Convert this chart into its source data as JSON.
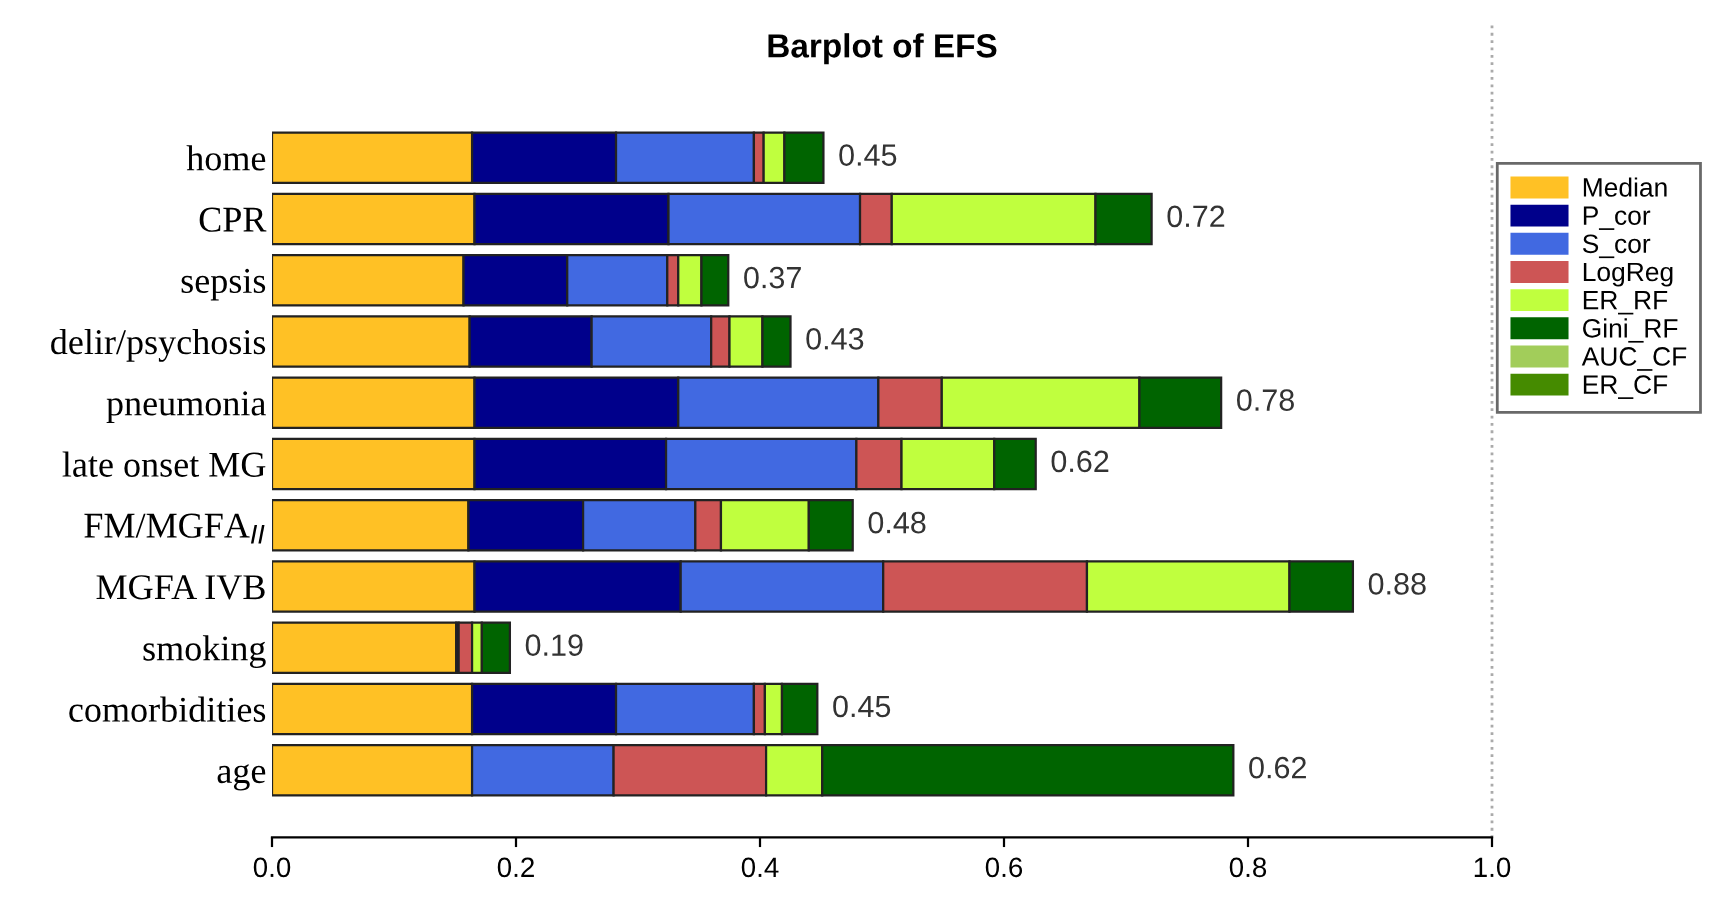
{
  "chart_data": {
    "type": "bar",
    "orientation": "horizontal",
    "stacked": true,
    "title": "Barplot of EFS",
    "categories": [
      "home",
      "CPR",
      "sepsis",
      "delir/psychosis",
      "pneumonia",
      "late onset MG",
      "FM/MGFA$_{II}$",
      "MGFA IVB",
      "smoking",
      "comorbidities",
      "age"
    ],
    "series": [
      {
        "name": "Median",
        "color": "#ffc125",
        "values": [
          0.164,
          0.166,
          0.157,
          0.162,
          0.166,
          0.166,
          0.161,
          0.166,
          0.151,
          0.164,
          0.164
        ]
      },
      {
        "name": "P_cor",
        "color": "#00008b",
        "values": [
          0.118,
          0.159,
          0.085,
          0.1,
          0.167,
          0.157,
          0.094,
          0.169,
          0.002,
          0.118,
          0
        ]
      },
      {
        "name": "S_cor",
        "color": "#4169e1",
        "values": [
          0.113,
          0.157,
          0.082,
          0.098,
          0.164,
          0.156,
          0.092,
          0.166,
          0,
          0.113,
          0.116
        ]
      },
      {
        "name": "LogReg",
        "color": "#cd5555",
        "values": [
          0.008,
          0.026,
          0.009,
          0.015,
          0.052,
          0.037,
          0.021,
          0.167,
          0.011,
          0.009,
          0.125
        ]
      },
      {
        "name": "ER_RF",
        "color": "#c0ff3e",
        "values": [
          0.017,
          0.167,
          0.019,
          0.027,
          0.162,
          0.076,
          0.072,
          0.166,
          0.008,
          0.014,
          0.046
        ]
      },
      {
        "name": "Gini_RF",
        "color": "#006400",
        "values": [
          0.032,
          0.046,
          0.022,
          0.023,
          0.067,
          0.034,
          0.036,
          0.052,
          0.023,
          0.029,
          0.337
        ]
      },
      {
        "name": "AUC_CF",
        "color": "#a2cd5a",
        "values": [
          0,
          0,
          0,
          0,
          0,
          0,
          0,
          0,
          0,
          0,
          0
        ]
      },
      {
        "name": "ER_CF",
        "color": "#458b00",
        "values": [
          0,
          0,
          0,
          0,
          0,
          0,
          0,
          0,
          0,
          0,
          0
        ]
      }
    ],
    "annotations": [
      {
        "text": "0.45",
        "x": 0.452,
        "y": "home"
      },
      {
        "text": "0.72",
        "x": 0.721,
        "y": "CPR"
      },
      {
        "text": "0.37",
        "x": 0.374,
        "y": "sepsis"
      },
      {
        "text": "0.43",
        "x": 0.425,
        "y": "delir/psychosis"
      },
      {
        "text": "0.78",
        "x": 0.778,
        "y": "pneumonia"
      },
      {
        "text": "0.62",
        "x": 0.626,
        "y": "late onset MG"
      },
      {
        "text": "0.48",
        "x": 0.476,
        "y": "FM/MGFA$_{II}$"
      },
      {
        "text": "0.88",
        "x": 0.886,
        "y": "MGFA IVB"
      },
      {
        "text": "0.19",
        "x": 0.195,
        "y": "smoking"
      },
      {
        "text": "0.45",
        "x": 0.447,
        "y": "comorbidities"
      },
      {
        "text": "0.62",
        "x": 0.788,
        "y": "age"
      }
    ],
    "xlim": [
      0,
      1.0
    ],
    "xticks": [
      {
        "value": 0,
        "label": "0.0"
      },
      0.2,
      0.4,
      0.6,
      0.8,
      {
        "value": 1.0,
        "label": "1.0"
      }
    ],
    "ref_lines": [
      {
        "axis": "x",
        "value": 1.0,
        "label": null,
        "color": "#aaaaaa",
        "line_style": "dotted"
      }
    ],
    "legend": "top right",
    "grid": false
  }
}
